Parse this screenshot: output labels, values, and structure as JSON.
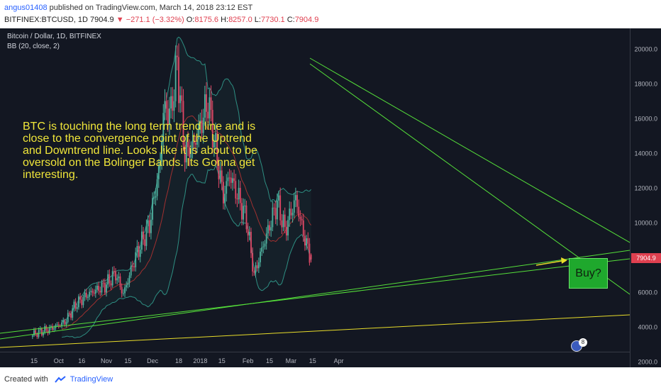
{
  "header": {
    "username": "angus01408",
    "published_text": "published on TradingView.com, March 14, 2018 23:12 EST",
    "symbol": "BITFINEX:BTCUSD, 1D",
    "last": "7904.9",
    "change_arrow": "▼",
    "change": "−271.1 (−3.32%)",
    "o_label": "O:",
    "o_value": "8175.6",
    "h_label": "H:",
    "h_value": "8257.0",
    "l_label": "L:",
    "l_value": "7730.1",
    "c_label": "C:",
    "c_value": "7904.9"
  },
  "legend": {
    "series": "Bitcoin / Dollar, 1D, BITFINEX",
    "indicator": "BB (20, close, 2)"
  },
  "annotation": {
    "text": "BTC is touching the long term trend line and is close to the convergence point of the Uptrend and Downtrend line. Looks like it is about to be oversold on the Bolinger Bands. Its Gonna get interesting.",
    "buy_label": "Buy?"
  },
  "last_price_label": "7904.9",
  "event_flag": {
    "icon": "us-flag-icon",
    "count": "8"
  },
  "footer": {
    "created_with": "Created with",
    "brand": "TradingView"
  },
  "colors": {
    "background": "#131722",
    "up_candle": "#4fb2a0",
    "down_candle": "#e04866",
    "bb_band": "#2e8f83",
    "bb_basis": "#a03030",
    "trend_green": "#55e03a",
    "trend_yellow": "#e8dc2a",
    "annotation_text": "#f0e63a",
    "buy_box": "#1fa82d"
  },
  "chart_data": {
    "type": "candlestick",
    "x_ticks": [
      "15",
      "Oct",
      "16",
      "Nov",
      "15",
      "Dec",
      "18",
      "2018",
      "15",
      "Feb",
      "15",
      "Mar",
      "15",
      "Apr"
    ],
    "y_ticks": [
      2000,
      4000,
      6000,
      8000,
      10000,
      12000,
      14000,
      16000,
      18000,
      20000
    ],
    "ylim": [
      1700,
      21200
    ],
    "close_path": [
      [
        "2017-09-14",
        3600
      ],
      [
        "2017-09-25",
        3900
      ],
      [
        "2017-10-05",
        4300
      ],
      [
        "2017-10-12",
        5300
      ],
      [
        "2017-10-20",
        5900
      ],
      [
        "2017-10-31",
        6400
      ],
      [
        "2017-11-07",
        7100
      ],
      [
        "2017-11-12",
        5900
      ],
      [
        "2017-11-20",
        8100
      ],
      [
        "2017-11-29",
        9900
      ],
      [
        "2017-12-06",
        13500
      ],
      [
        "2017-12-08",
        16500
      ],
      [
        "2017-12-13",
        16400
      ],
      [
        "2017-12-17",
        19200
      ],
      [
        "2017-12-22",
        14000
      ],
      [
        "2017-12-28",
        14500
      ],
      [
        "2018-01-06",
        17000
      ],
      [
        "2018-01-16",
        11500
      ],
      [
        "2018-01-20",
        12800
      ],
      [
        "2018-01-31",
        10200
      ],
      [
        "2018-02-05",
        7000
      ],
      [
        "2018-02-09",
        8200
      ],
      [
        "2018-02-20",
        11200
      ],
      [
        "2018-02-25",
        9600
      ],
      [
        "2018-03-04",
        11400
      ],
      [
        "2018-03-09",
        9400
      ],
      [
        "2018-03-14",
        7905
      ]
    ],
    "series": [
      {
        "name": "BB (20, close, 2)"
      }
    ]
  }
}
